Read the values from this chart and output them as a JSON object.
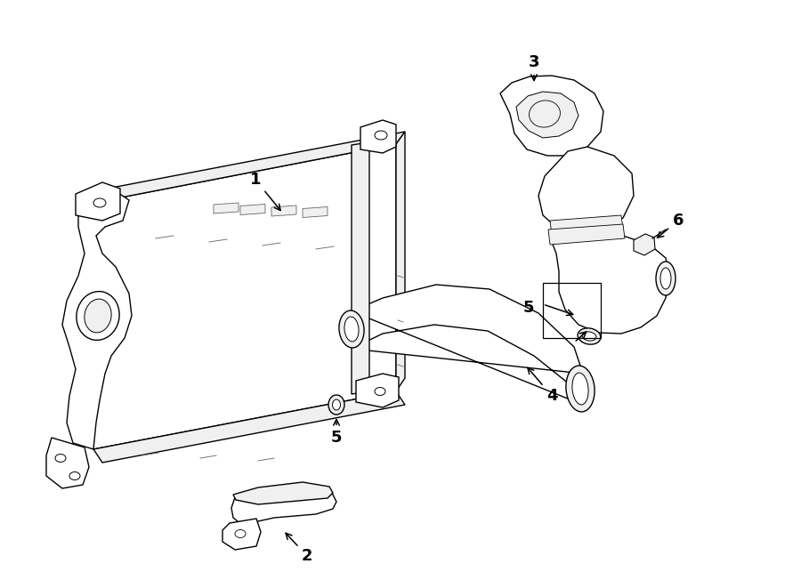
{
  "background_color": "#ffffff",
  "line_color": "#000000",
  "fig_width": 9.0,
  "fig_height": 6.61,
  "dpi": 100,
  "lw": 1.0,
  "fill_white": "#ffffff",
  "fill_light": "#f0f0f0"
}
